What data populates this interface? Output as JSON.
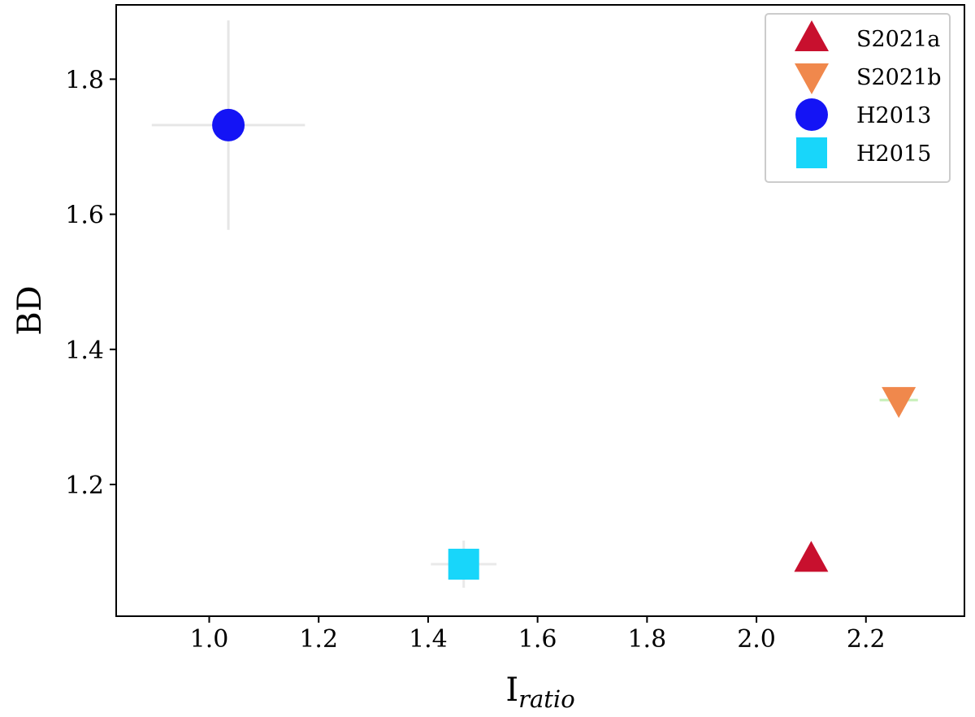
{
  "chart_data": {
    "type": "scatter",
    "xlabel_main": "I",
    "xlabel_sub": "ratio",
    "ylabel": "BD",
    "xlim": [
      0.83,
      2.38
    ],
    "ylim": [
      1.005,
      1.91
    ],
    "xticks": [
      1.0,
      1.2,
      1.4,
      1.6,
      1.8,
      2.0,
      2.2
    ],
    "xtick_labels": [
      "1.0",
      "1.2",
      "1.4",
      "1.6",
      "1.8",
      "2.0",
      "2.2"
    ],
    "yticks": [
      1.2,
      1.4,
      1.6,
      1.8
    ],
    "ytick_labels": [
      "1.2",
      "1.4",
      "1.6",
      "1.8"
    ],
    "grid": false,
    "legend_position": "top-right",
    "series": [
      {
        "name": "S2021a",
        "marker": "triangle-up",
        "color": "#c8102e",
        "x": 2.1,
        "y": 1.09,
        "xerr": 0.0,
        "yerr": 0.0,
        "errcolor": "#dddddd"
      },
      {
        "name": "S2021b",
        "marker": "triangle-down",
        "color": "#f0884c",
        "x": 2.26,
        "y": 1.325,
        "xerr": 0.035,
        "yerr": 0.0,
        "errcolor": "#c6efb8"
      },
      {
        "name": "H2013",
        "marker": "circle",
        "color": "#1414f5",
        "x": 1.035,
        "y": 1.732,
        "xerr": 0.14,
        "yerr": 0.155,
        "errcolor": "#e6e6e6"
      },
      {
        "name": "H2015",
        "marker": "square",
        "color": "#18d6fa",
        "x": 1.465,
        "y": 1.082,
        "xerr": 0.06,
        "yerr": 0.035,
        "errcolor": "#e9e9e9"
      }
    ]
  }
}
